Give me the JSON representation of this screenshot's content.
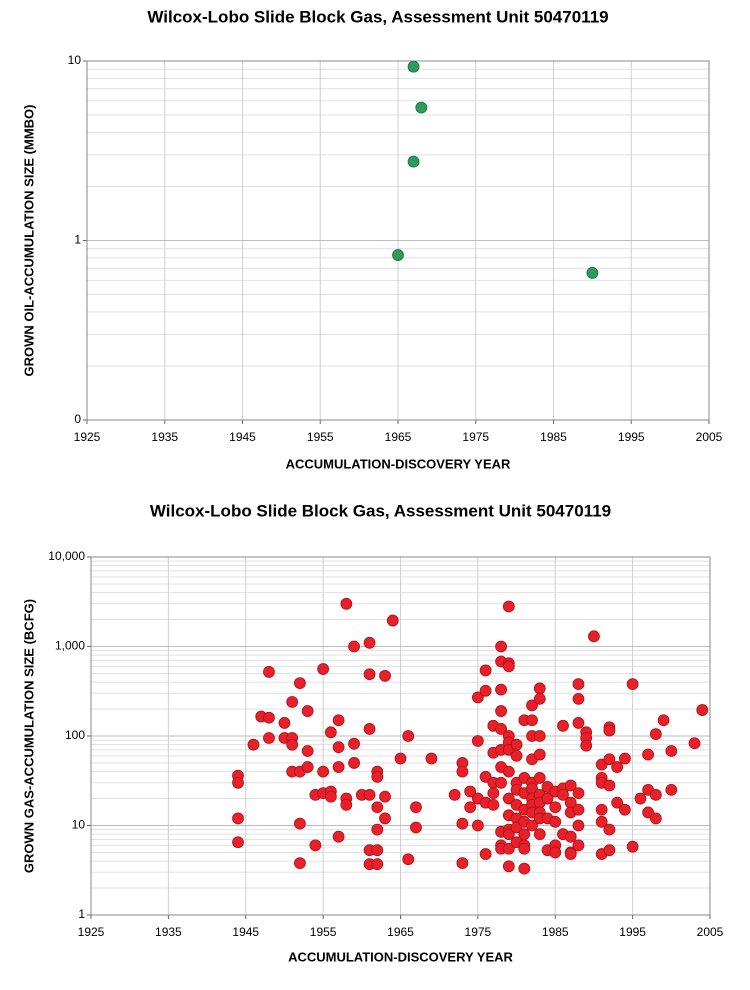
{
  "chart_data": [
    {
      "type": "scatter",
      "title": "Wilcox-Lobo Slide Block Gas, Assessment Unit 50470119",
      "x_label": "ACCUMULATION-DISCOVERY YEAR",
      "y_label": "GROWN OIL-ACCUMULATION SIZE (MMBO)",
      "xlim": [
        1925,
        2005
      ],
      "xticks": [
        1925,
        1935,
        1945,
        1955,
        1965,
        1975,
        1985,
        1995,
        2005
      ],
      "ylim": [
        0.1,
        10
      ],
      "yticks": [
        {
          "value": 0.1,
          "label": "0"
        },
        1,
        10
      ],
      "log_y": true,
      "grid": true,
      "series": [
        {
          "color": "#2e9a5e",
          "x": [
            1967,
            1968,
            1967,
            1965,
            1990
          ],
          "values": [
            9.3,
            5.5,
            2.75,
            0.83,
            0.66
          ]
        }
      ]
    },
    {
      "type": "scatter",
      "title": "Wilcox-Lobo Slide Block Gas, Assessment Unit 50470119",
      "x_label": "ACCUMULATION-DISCOVERY YEAR",
      "y_label": "GROWN GAS-ACCUMULATION SIZE (BCFG)",
      "xlim": [
        1925,
        2005
      ],
      "xticks": [
        1925,
        1935,
        1945,
        1955,
        1965,
        1975,
        1985,
        1995,
        2005
      ],
      "ylim": [
        1,
        10000
      ],
      "yticks": [
        1,
        10,
        100,
        {
          "value": 1000,
          "label": "1,000"
        },
        {
          "value": 10000,
          "label": "10,000"
        }
      ],
      "log_y": true,
      "grid": true,
      "series": [
        {
          "color": "#e8202a",
          "x": [
            1944,
            1944,
            1944,
            1944,
            1946,
            1947,
            1948,
            1948,
            1948,
            1950,
            1950,
            1951,
            1951,
            1951,
            1951,
            1952,
            1952,
            1952,
            1952,
            1953,
            1953,
            1953,
            1954,
            1954,
            1955,
            1955,
            1955,
            1956,
            1956,
            1956,
            1957,
            1957,
            1957,
            1957,
            1958,
            1958,
            1958,
            1959,
            1959,
            1959,
            1960,
            1961,
            1961,
            1961,
            1961,
            1961,
            1961,
            1962,
            1962,
            1962,
            1962,
            1962,
            1962,
            1963,
            1963,
            1963,
            1964,
            1965,
            1966,
            1966,
            1967,
            1967,
            1969,
            1972,
            1973,
            1973,
            1973,
            1973,
            1974,
            1974,
            1975,
            1975,
            1975,
            1975,
            1976,
            1976,
            1976,
            1976,
            1976,
            1977,
            1977,
            1977,
            1977,
            1977,
            1978,
            1978,
            1978,
            1978,
            1978,
            1978,
            1978,
            1978,
            1978,
            1978,
            1978,
            1979,
            1979,
            1979,
            1979,
            1979,
            1979,
            1979,
            1979,
            1979,
            1979,
            1979,
            1979,
            1979,
            1980,
            1980,
            1980,
            1980,
            1980,
            1980,
            1980,
            1980,
            1981,
            1981,
            1981,
            1981,
            1981,
            1981,
            1981,
            1981,
            1981,
            1982,
            1982,
            1982,
            1982,
            1982,
            1982,
            1982,
            1982,
            1982,
            1982,
            1983,
            1983,
            1983,
            1983,
            1983,
            1983,
            1983,
            1983,
            1983,
            1983,
            1984,
            1984,
            1984,
            1984,
            1985,
            1985,
            1985,
            1985,
            1985,
            1986,
            1986,
            1986,
            1986,
            1987,
            1987,
            1987,
            1987,
            1987,
            1987,
            1988,
            1988,
            1988,
            1988,
            1988,
            1988,
            1988,
            1989,
            1989,
            1989,
            1990,
            1991,
            1991,
            1991,
            1991,
            1991,
            1991,
            1992,
            1992,
            1992,
            1992,
            1992,
            1992,
            1993,
            1993,
            1994,
            1994,
            1995,
            1995,
            1996,
            1997,
            1997,
            1997,
            1998,
            1998,
            1998,
            1999,
            2000,
            2000,
            2003,
            2004
          ],
          "values": [
            36,
            30,
            12,
            6.5,
            80,
            165,
            520,
            160,
            95,
            140,
            95,
            240,
            95,
            80,
            40,
            390,
            40,
            10.5,
            3.8,
            190,
            68,
            45,
            22,
            6,
            560,
            40,
            23,
            110,
            24,
            21,
            150,
            75,
            45,
            7.5,
            3000,
            20,
            17,
            1000,
            82,
            50,
            22,
            1100,
            490,
            120,
            22,
            5.3,
            3.7,
            40,
            35,
            16,
            9,
            5.3,
            3.7,
            470,
            21,
            12,
            1950,
            56,
            100,
            4.2,
            16,
            9.5,
            56,
            22,
            50,
            40,
            10.5,
            3.8,
            24,
            16,
            270,
            88,
            20,
            10,
            540,
            320,
            35,
            18,
            4.8,
            130,
            65,
            30,
            23,
            17,
            1000,
            680,
            330,
            190,
            120,
            70,
            45,
            30,
            8.5,
            6,
            5.5,
            2800,
            650,
            600,
            100,
            85,
            70,
            40,
            20,
            13,
            9,
            8,
            5.5,
            3.5,
            80,
            60,
            30,
            25,
            17,
            12,
            9.5,
            6.5,
            150,
            34,
            23,
            15,
            11,
            8,
            6,
            5.5,
            3.3,
            220,
            150,
            100,
            55,
            30,
            26,
            20,
            17,
            14,
            10,
            340,
            260,
            100,
            62,
            34,
            22,
            18,
            14,
            12,
            8,
            27,
            20,
            12,
            5.3,
            24,
            16,
            11,
            6,
            5,
            130,
            26,
            22,
            8,
            28,
            18,
            14,
            7.5,
            5,
            4.8,
            380,
            260,
            140,
            23,
            15,
            10,
            6,
            110,
            95,
            78,
            1300,
            48,
            34,
            30,
            15,
            11,
            4.8,
            125,
            115,
            55,
            28,
            9,
            5.3,
            45,
            18,
            56,
            15,
            380,
            5.8,
            20,
            62,
            25,
            14,
            105,
            22,
            12,
            150,
            68,
            25,
            83,
            195
          ]
        }
      ]
    }
  ]
}
